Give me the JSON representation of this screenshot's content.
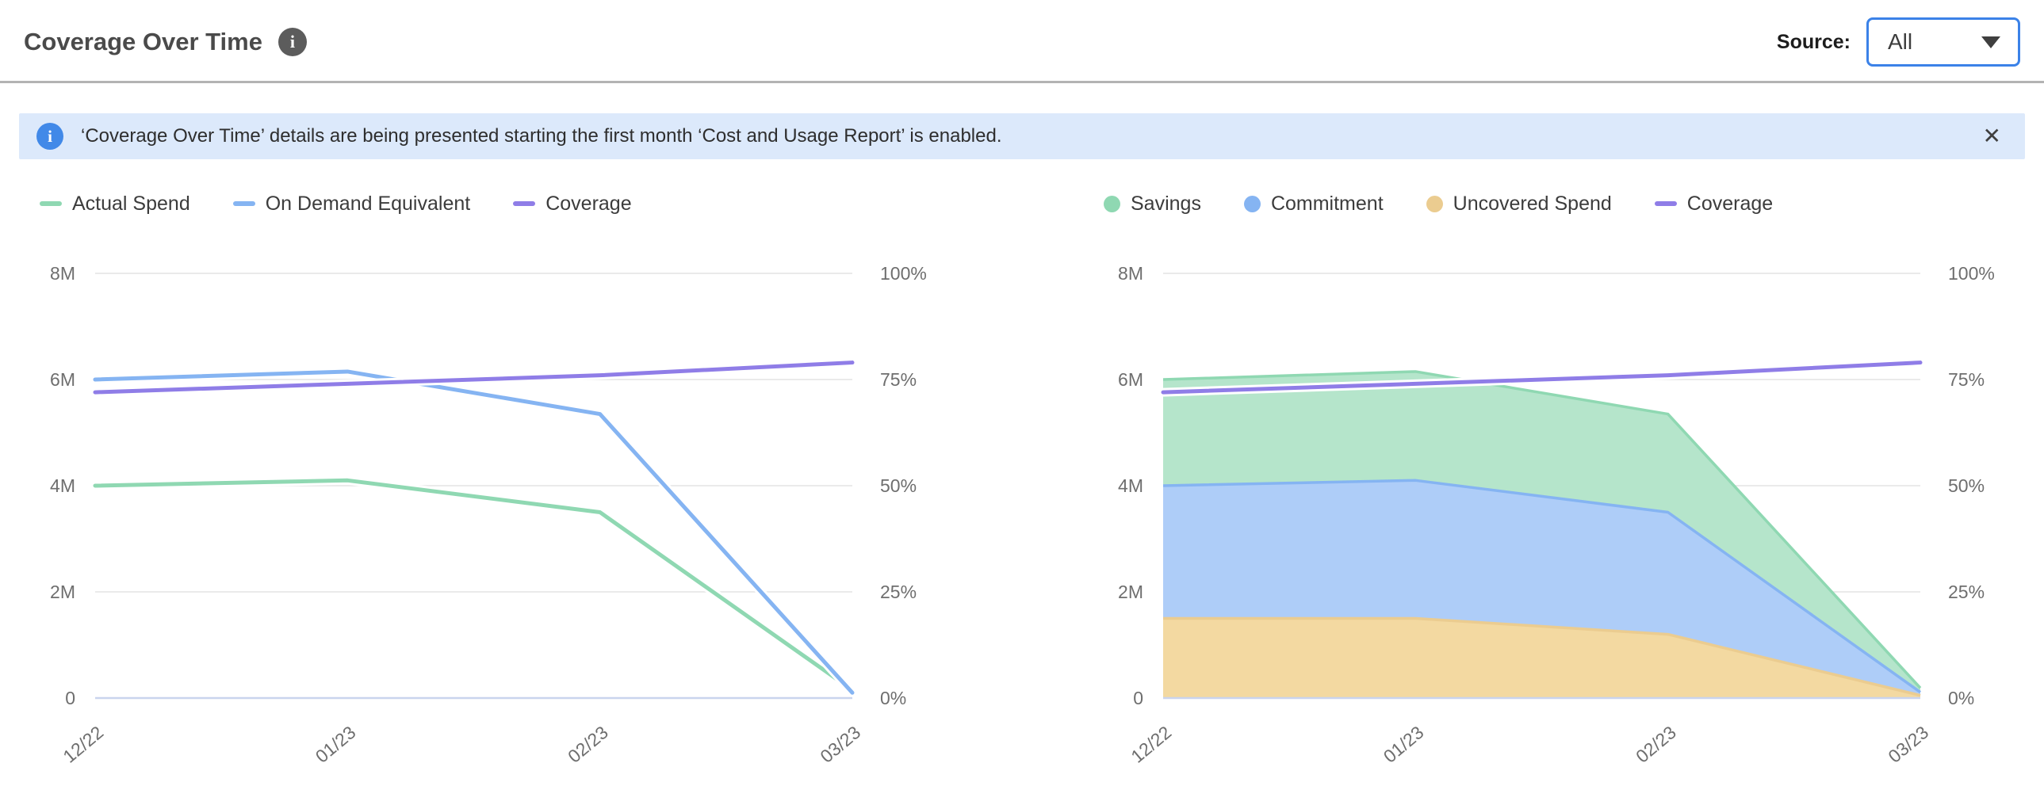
{
  "header": {
    "title": "Coverage Over Time",
    "info_icon": "i",
    "source_label": "Source:",
    "source_value": "All"
  },
  "banner": {
    "info_icon": "i",
    "text": "‘Coverage Over Time’ details are being presented starting the first month ‘Cost and Usage Report’ is enabled.",
    "close_icon": "✕"
  },
  "colors": {
    "accent_blue": "#3b82e8",
    "banner_bg": "#dce9fb",
    "grid": "#e4e4e4",
    "zero_line": "#c9d4ee",
    "axis_text": "#6e6e6e"
  },
  "chart_data": [
    {
      "type": "line",
      "categories": [
        "12/22",
        "01/23",
        "02/23",
        "03/23"
      ],
      "y_axis_left": {
        "ticks": [
          "8M",
          "6M",
          "4M",
          "2M",
          "0"
        ],
        "min": 0,
        "max": 8000000
      },
      "y_axis_right": {
        "ticks": [
          "100%",
          "75%",
          "50%",
          "25%",
          "0%"
        ],
        "min": 0,
        "max": 100
      },
      "grid": true,
      "legend_position": "top",
      "series": [
        {
          "name": "Actual Spend",
          "render": "line",
          "marker": "line",
          "axis": "left",
          "color": "#8fd8b2",
          "values": [
            4000000,
            4100000,
            3500000,
            150000
          ]
        },
        {
          "name": "On Demand Equivalent",
          "render": "line",
          "marker": "line",
          "axis": "left",
          "color": "#85b4f2",
          "values": [
            6000000,
            6150000,
            5350000,
            100000
          ]
        },
        {
          "name": "Coverage",
          "render": "line",
          "marker": "line",
          "axis": "right",
          "color": "#8f7de7",
          "values": [
            72,
            74,
            76,
            79
          ]
        }
      ]
    },
    {
      "type": "area",
      "categories": [
        "12/22",
        "01/23",
        "02/23",
        "03/23"
      ],
      "y_axis_left": {
        "ticks": [
          "8M",
          "6M",
          "4M",
          "2M",
          "0"
        ],
        "min": 0,
        "max": 8000000
      },
      "y_axis_right": {
        "ticks": [
          "100%",
          "75%",
          "50%",
          "25%",
          "0%"
        ],
        "min": 0,
        "max": 100
      },
      "grid": true,
      "legend_position": "top",
      "series": [
        {
          "name": "Savings",
          "render": "area",
          "marker": "dot",
          "axis": "left",
          "stack_level": 3,
          "color": "#8fd8b2",
          "fill": "#b5e5cb",
          "values": [
            2000000,
            2050000,
            1850000,
            80000
          ]
        },
        {
          "name": "Commitment",
          "render": "area",
          "marker": "dot",
          "axis": "left",
          "stack_level": 2,
          "color": "#85b4f2",
          "fill": "#aecdf8",
          "values": [
            2500000,
            2600000,
            2300000,
            60000
          ]
        },
        {
          "name": "Uncovered Spend",
          "render": "area",
          "marker": "dot",
          "axis": "left",
          "stack_level": 1,
          "color": "#ebcc90",
          "fill": "#f3d9a1",
          "values": [
            1500000,
            1500000,
            1200000,
            50000
          ]
        },
        {
          "name": "Coverage",
          "render": "line",
          "marker": "line",
          "axis": "right",
          "color": "#8f7de7",
          "values": [
            72,
            74,
            76,
            79
          ]
        }
      ]
    }
  ]
}
